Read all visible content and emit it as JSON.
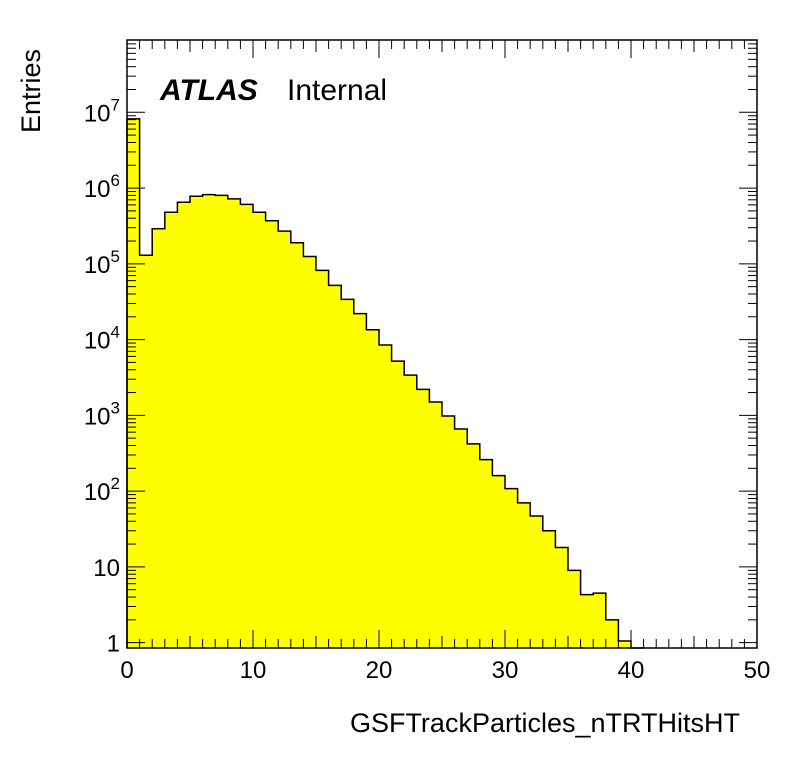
{
  "chart_data": {
    "type": "bar",
    "xlabel": "GSFTrackParticles_nTRTHitsHT",
    "ylabel": "Entries",
    "annotation": {
      "experiment": "ATLAS",
      "status": "Internal"
    },
    "log_y": true,
    "xlim": [
      0,
      50
    ],
    "ylim": [
      0.85,
      90000000
    ],
    "bin_width": 1,
    "x_ticks": [
      "0",
      "10",
      "20",
      "30",
      "40",
      "50"
    ],
    "y_ticks": [
      "1",
      "10",
      "10^2",
      "10^3",
      "10^4",
      "10^5",
      "10^6",
      "10^7"
    ],
    "fill_color": "#ffff00",
    "line_color": "#000000",
    "values": [
      8200000,
      130000,
      290000,
      480000,
      650000,
      780000,
      820000,
      800000,
      720000,
      610000,
      480000,
      370000,
      270000,
      190000,
      125000,
      82000,
      52000,
      34000,
      22000,
      13500,
      8500,
      5200,
      3400,
      2200,
      1500,
      980,
      660,
      420,
      260,
      160,
      108,
      70,
      47,
      30,
      18,
      9,
      4.3,
      4.5,
      2.0,
      1.05,
      0.7
    ]
  }
}
